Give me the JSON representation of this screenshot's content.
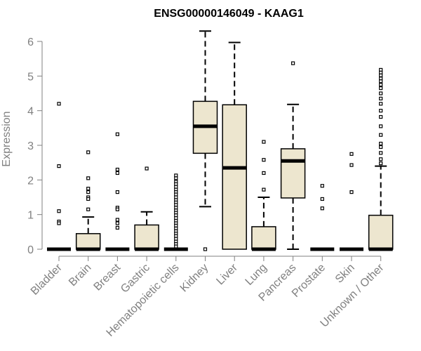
{
  "chart_data": {
    "type": "boxplot",
    "title": "ENSG00000146049 - KAAG1",
    "xlabel": "",
    "ylabel": "Expression",
    "ylim": [
      0,
      6.3
    ],
    "yticks": [
      0,
      1,
      2,
      3,
      4,
      5,
      6
    ],
    "grid": false,
    "box_fill": "#ede6cf",
    "box_stroke": "#000000",
    "axis_color": "#808080",
    "categories": [
      "Bladder",
      "Brain",
      "Breast",
      "Gastric",
      "Hematopoietic cells",
      "Kidney",
      "Liver",
      "Lung",
      "Pancreas",
      "Prostate",
      "Skin",
      "Unknown / Other"
    ],
    "boxes": [
      {
        "category": "Bladder",
        "min": 0,
        "q1": 0,
        "median": 0,
        "q3": 0,
        "max": 0,
        "outliers": [
          4.2,
          2.4,
          1.1,
          0.8,
          0.75
        ]
      },
      {
        "category": "Brain",
        "min": 0,
        "q1": 0,
        "median": 0,
        "q3": 0.45,
        "max": 0.93,
        "outliers": [
          2.8,
          2.05,
          1.75,
          1.65,
          1.5,
          1.45,
          1.15
        ]
      },
      {
        "category": "Breast",
        "min": 0,
        "q1": 0,
        "median": 0,
        "q3": 0,
        "max": 0,
        "outliers": [
          3.32,
          2.3,
          2.2,
          1.65,
          1.2,
          1.15,
          0.85,
          0.75,
          0.62
        ]
      },
      {
        "category": "Gastric",
        "min": 0,
        "q1": 0,
        "median": 0,
        "q3": 0.7,
        "max": 1.08,
        "outliers": [
          2.33
        ]
      },
      {
        "category": "Hematopoietic cells",
        "min": 0,
        "q1": 0,
        "median": 0,
        "q3": 0,
        "max": 0,
        "outliers": [
          2.13,
          2.05,
          1.95,
          1.88,
          1.8,
          1.72,
          1.65,
          1.58,
          1.5,
          1.42,
          1.35,
          1.28,
          1.2,
          1.12,
          1.05,
          0.98,
          0.9,
          0.82,
          0.75,
          0.68,
          0.6,
          0.52,
          0.45,
          0.38,
          0.3,
          0.22,
          0.15,
          0.08
        ]
      },
      {
        "category": "Kidney",
        "min": 1.23,
        "q1": 2.77,
        "median": 3.55,
        "q3": 4.27,
        "max": 6.3,
        "outliers": [
          0
        ]
      },
      {
        "category": "Liver",
        "min": 0,
        "q1": 0,
        "median": 2.35,
        "q3": 4.17,
        "max": 5.97,
        "outliers": []
      },
      {
        "category": "Lung",
        "min": 0,
        "q1": 0,
        "median": 0,
        "q3": 0.65,
        "max": 1.5,
        "outliers": [
          3.1,
          2.58,
          2.2,
          1.72
        ]
      },
      {
        "category": "Pancreas",
        "min": 0,
        "q1": 1.48,
        "median": 2.55,
        "q3": 2.9,
        "max": 4.18,
        "outliers": [
          5.37
        ]
      },
      {
        "category": "Prostate",
        "min": 0,
        "q1": 0,
        "median": 0,
        "q3": 0,
        "max": 0,
        "outliers": [
          1.83,
          1.45,
          1.18
        ]
      },
      {
        "category": "Skin",
        "min": 0,
        "q1": 0,
        "median": 0,
        "q3": 0,
        "max": 0,
        "outliers": [
          2.75,
          2.43,
          1.65
        ]
      },
      {
        "category": "Unknown / Other",
        "min": 0,
        "q1": 0,
        "median": 0,
        "q3": 0.98,
        "max": 2.4,
        "outliers": [
          5.18,
          5.1,
          5.02,
          4.93,
          4.85,
          4.75,
          4.65,
          4.5,
          4.35,
          4.2,
          4.0,
          3.82,
          3.55,
          3.3,
          3.05,
          2.95,
          2.78,
          2.6,
          2.48
        ]
      }
    ]
  }
}
